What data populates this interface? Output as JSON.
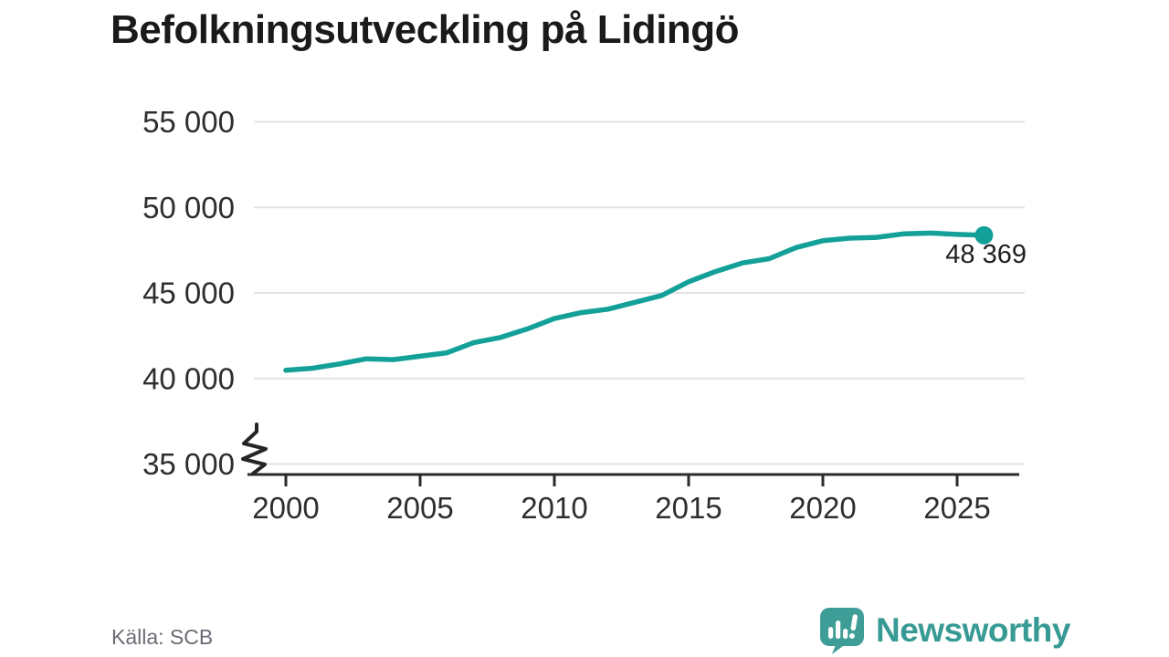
{
  "title": "Befolkningsutveckling på Lidingö",
  "chart_data": {
    "type": "line",
    "title": "Befolkningsutveckling på Lidingö",
    "x": [
      2000,
      2001,
      2002,
      2003,
      2004,
      2005,
      2006,
      2007,
      2008,
      2009,
      2010,
      2011,
      2012,
      2013,
      2014,
      2015,
      2016,
      2017,
      2018,
      2019,
      2020,
      2021,
      2022,
      2023,
      2024,
      2025,
      2026
    ],
    "values": [
      40480,
      40600,
      40850,
      41150,
      41100,
      41300,
      41500,
      42100,
      42400,
      42900,
      43500,
      43850,
      44050,
      44450,
      44850,
      45650,
      46250,
      46750,
      47000,
      47650,
      48050,
      48200,
      48250,
      48450,
      48500,
      48420,
      48369
    ],
    "end_value": 48369,
    "end_label": "48 369",
    "xticks": [
      2000,
      2005,
      2010,
      2015,
      2020,
      2025
    ],
    "xtick_labels": [
      "2000",
      "2005",
      "2010",
      "2015",
      "2020",
      "2025"
    ],
    "yticks": [
      55000,
      50000,
      45000,
      40000,
      35000
    ],
    "ytick_labels": [
      "55 000",
      "50 000",
      "45 000",
      "40 000",
      "35 000"
    ],
    "ylim": [
      35000,
      55000
    ],
    "y_axis_break": true,
    "grid": "horizontal",
    "legend": "none",
    "xlabel": "",
    "ylabel": "",
    "line_color": "#12a098",
    "grid_color": "#e3e3e3",
    "axis_color": "#2b2b2b"
  },
  "footer": {
    "source": "Källa: SCB",
    "brand": "Newsworthy",
    "brand_color": "#379a94",
    "logo_icon_name": "newsworthy-chart-speech-bubble-icon"
  }
}
